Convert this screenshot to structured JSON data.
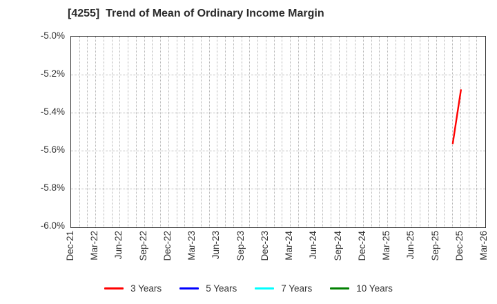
{
  "title": "[4255]  Trend of Mean of Ordinary Income Margin",
  "chart_data": {
    "type": "line",
    "title": "[4255]  Trend of Mean of Ordinary Income Margin",
    "x_axis": {
      "range": [
        "Dec-21",
        "Mar-26"
      ],
      "tick_labels": [
        "Dec-21",
        "Mar-22",
        "Jun-22",
        "Sep-22",
        "Dec-22",
        "Mar-23",
        "Jun-23",
        "Sep-23",
        "Dec-23",
        "Mar-24",
        "Jun-24",
        "Sep-24",
        "Dec-24",
        "Mar-25",
        "Jun-25",
        "Sep-25",
        "Dec-25",
        "Mar-26"
      ],
      "minor_gridlines": "monthly"
    },
    "y_axis": {
      "lim": [
        -6.0,
        -5.0
      ],
      "ticks": [
        {
          "label": "-5.0%",
          "value": -5.0
        },
        {
          "label": "-5.2%",
          "value": -5.2
        },
        {
          "label": "-5.4%",
          "value": -5.4
        },
        {
          "label": "-5.6%",
          "value": -5.6
        },
        {
          "label": "-5.8%",
          "value": -5.8
        },
        {
          "label": "-6.0%",
          "value": -6.0
        }
      ]
    },
    "grid": {
      "on": true,
      "style": "dotted",
      "color": "#b5b5b5"
    },
    "legend": {
      "position": "bottom-center",
      "entries": [
        {
          "label": "3 Years",
          "color": "#ff0000"
        },
        {
          "label": "5 Years",
          "color": "#0000ff"
        },
        {
          "label": "7 Years",
          "color": "#00ffff"
        },
        {
          "label": "10 Years",
          "color": "#008000"
        }
      ]
    },
    "series": [
      {
        "name": "3 Years",
        "color": "#ff0000",
        "points": [
          {
            "x": "Nov-25",
            "y": -5.56
          },
          {
            "x": "Dec-25",
            "y": -5.28
          }
        ]
      },
      {
        "name": "5 Years",
        "color": "#0000ff",
        "points": []
      },
      {
        "name": "7 Years",
        "color": "#00ffff",
        "points": []
      },
      {
        "name": "10 Years",
        "color": "#008000",
        "points": []
      }
    ]
  },
  "colors": {
    "axis": "#333333",
    "text": "#333333",
    "title_text": "#2b2b2b",
    "background": "#ffffff"
  }
}
